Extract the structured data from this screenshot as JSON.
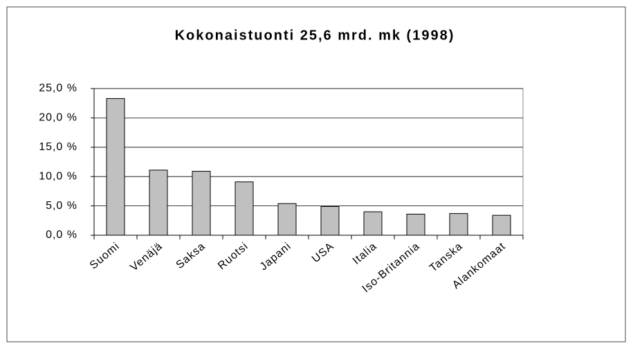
{
  "chart_data": {
    "type": "bar",
    "title": "Kokonaistuonti 25,6 mrd. mk (1998)",
    "categories": [
      "Suomi",
      "Venäjä",
      "Saksa",
      "Ruotsi",
      "Japani",
      "USA",
      "Italia",
      "Iso-Britannia",
      "Tanska",
      "Alankomaat"
    ],
    "values": [
      23.3,
      11.1,
      10.9,
      9.1,
      5.4,
      4.9,
      4.0,
      3.6,
      3.7,
      3.4
    ],
    "color": "#c0c0c0",
    "ylim": [
      0,
      25
    ],
    "yticks": [
      {
        "value": 0,
        "label": "0,0 %"
      },
      {
        "value": 5,
        "label": "5,0 %"
      },
      {
        "value": 10,
        "label": "10,0 %"
      },
      {
        "value": 15,
        "label": "15,0 %"
      },
      {
        "value": 20,
        "label": "20,0 %"
      },
      {
        "value": 25,
        "label": "25,0 %"
      }
    ],
    "grid": true
  }
}
